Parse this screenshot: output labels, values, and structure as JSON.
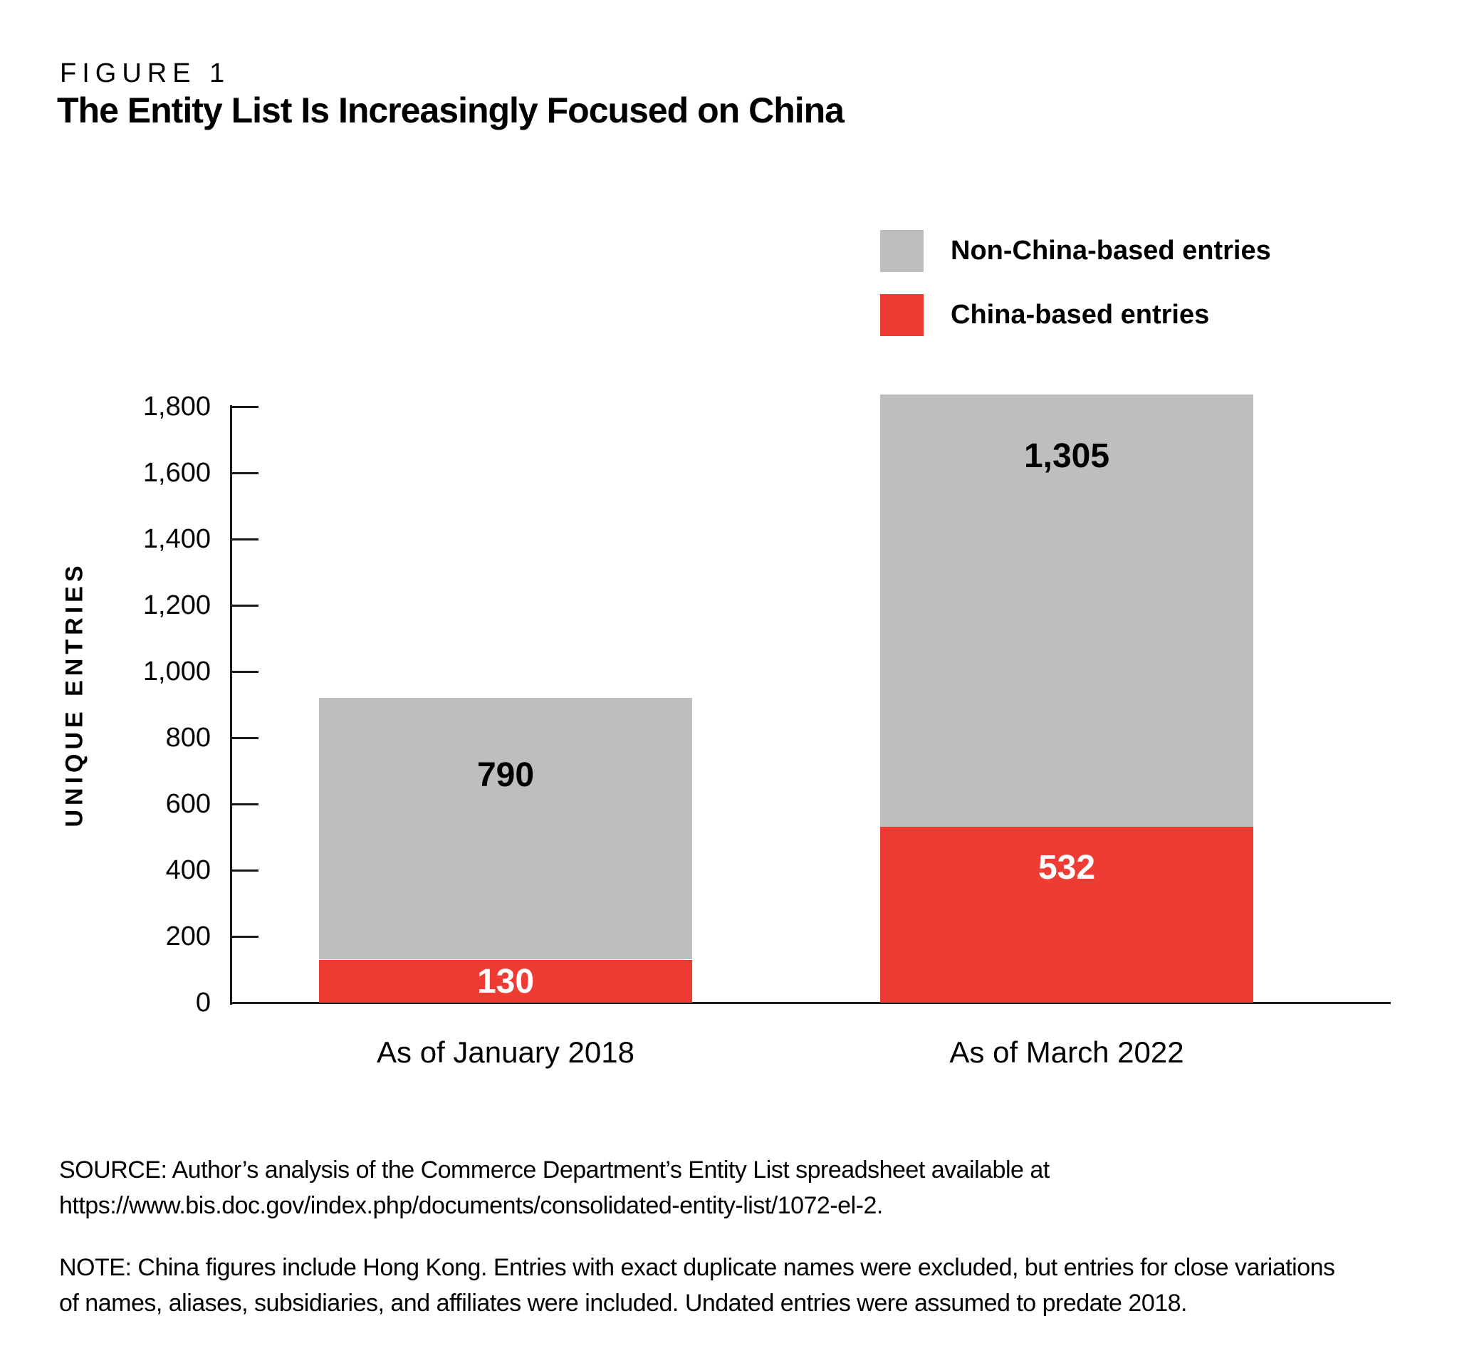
{
  "header": {
    "figure_label": "FIGURE 1",
    "title": "The Entity List Is Increasingly Focused on China"
  },
  "legend": {
    "items": [
      {
        "label": "Non-China-based entries",
        "color": "#bcbec0"
      },
      {
        "label": "China-based entries",
        "color": "#ee3b33"
      }
    ]
  },
  "chart_data": {
    "type": "bar",
    "stacked": true,
    "title": "The Entity List Is Increasingly Focused on China",
    "categories": [
      "As of January 2018",
      "As of March 2022"
    ],
    "series": [
      {
        "name": "China-based entries",
        "color": "#ee3b33",
        "values": [
          130,
          532
        ],
        "value_labels": [
          "130",
          "532"
        ],
        "label_color": "#ffffff"
      },
      {
        "name": "Non-China-based entries",
        "color": "#bcbec0",
        "values": [
          790,
          1305
        ],
        "value_labels": [
          "790",
          "1,305"
        ],
        "label_color": "#000000"
      }
    ],
    "totals": [
      920,
      1837
    ],
    "xlabel": "",
    "ylabel": "UNIQUE ENTRIES",
    "ylim": [
      0,
      1800
    ],
    "ytick_step": 200,
    "ytick_labels": [
      "0",
      "200",
      "400",
      "600",
      "800",
      "1,000",
      "1,200",
      "1,400",
      "1,600",
      "1,800"
    ],
    "grid": false,
    "legend_position": "top-right"
  },
  "footer": {
    "source_lines": [
      "SOURCE: Author’s analysis of the Commerce Department’s Entity List spreadsheet available at",
      "https://www.bis.doc.gov/index.php/documents/consolidated-entity-list/1072-el-2."
    ],
    "note_lines": [
      "NOTE: China figures include Hong Kong. Entries with exact duplicate names were excluded, but entries for close variations",
      "of names, aliases, subsidiaries, and affiliates were included. Undated entries were assumed to predate 2018."
    ]
  }
}
